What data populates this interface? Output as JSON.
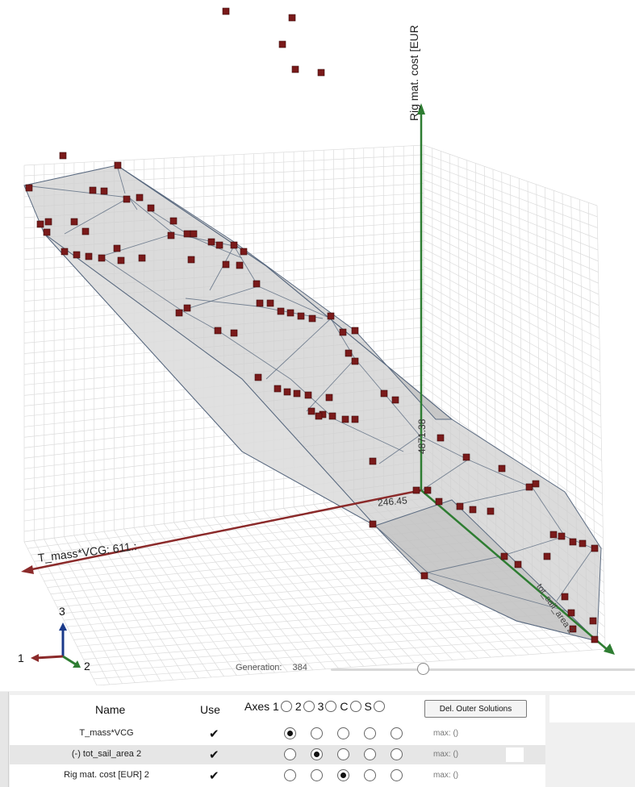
{
  "viewport": {
    "axis_labels": {
      "vertical": "Rig mat. cost [EUR",
      "left": "T_mass*VCG: 611.:",
      "right": "tot_sail_area 2"
    },
    "value_labels": {
      "a": "4871.38",
      "b": "246.45"
    },
    "triad": {
      "x": "1",
      "y": "2",
      "z": "3"
    },
    "colors": {
      "vertical_axis": "#2e7d32",
      "left_axis": "#8b2a2a",
      "right_axis": "#2e7d32",
      "points": "#7a1a1a",
      "hull_fill": "#cfcfcf",
      "hull_edges": "#5a6a80"
    }
  },
  "generation": {
    "label": "Generation:",
    "value": "384"
  },
  "table": {
    "headers": {
      "name": "Name",
      "use": "Use",
      "axes_label": "Axes 1",
      "axes_2": "2",
      "axes_3": "3",
      "axes_c": "C",
      "axes_s": "S"
    },
    "del_button": "Del. Outer Solutions",
    "rows": [
      {
        "name": "T_mass*VCG",
        "use": "✔",
        "selected": 0,
        "max": "max: ()"
      },
      {
        "name": "(-) tot_sail_area 2",
        "use": "✔",
        "selected": 1,
        "max": "max: ()"
      },
      {
        "name": "Rig mat. cost [EUR] 2",
        "use": "✔",
        "selected": 2,
        "max": "max: ()"
      }
    ]
  }
}
